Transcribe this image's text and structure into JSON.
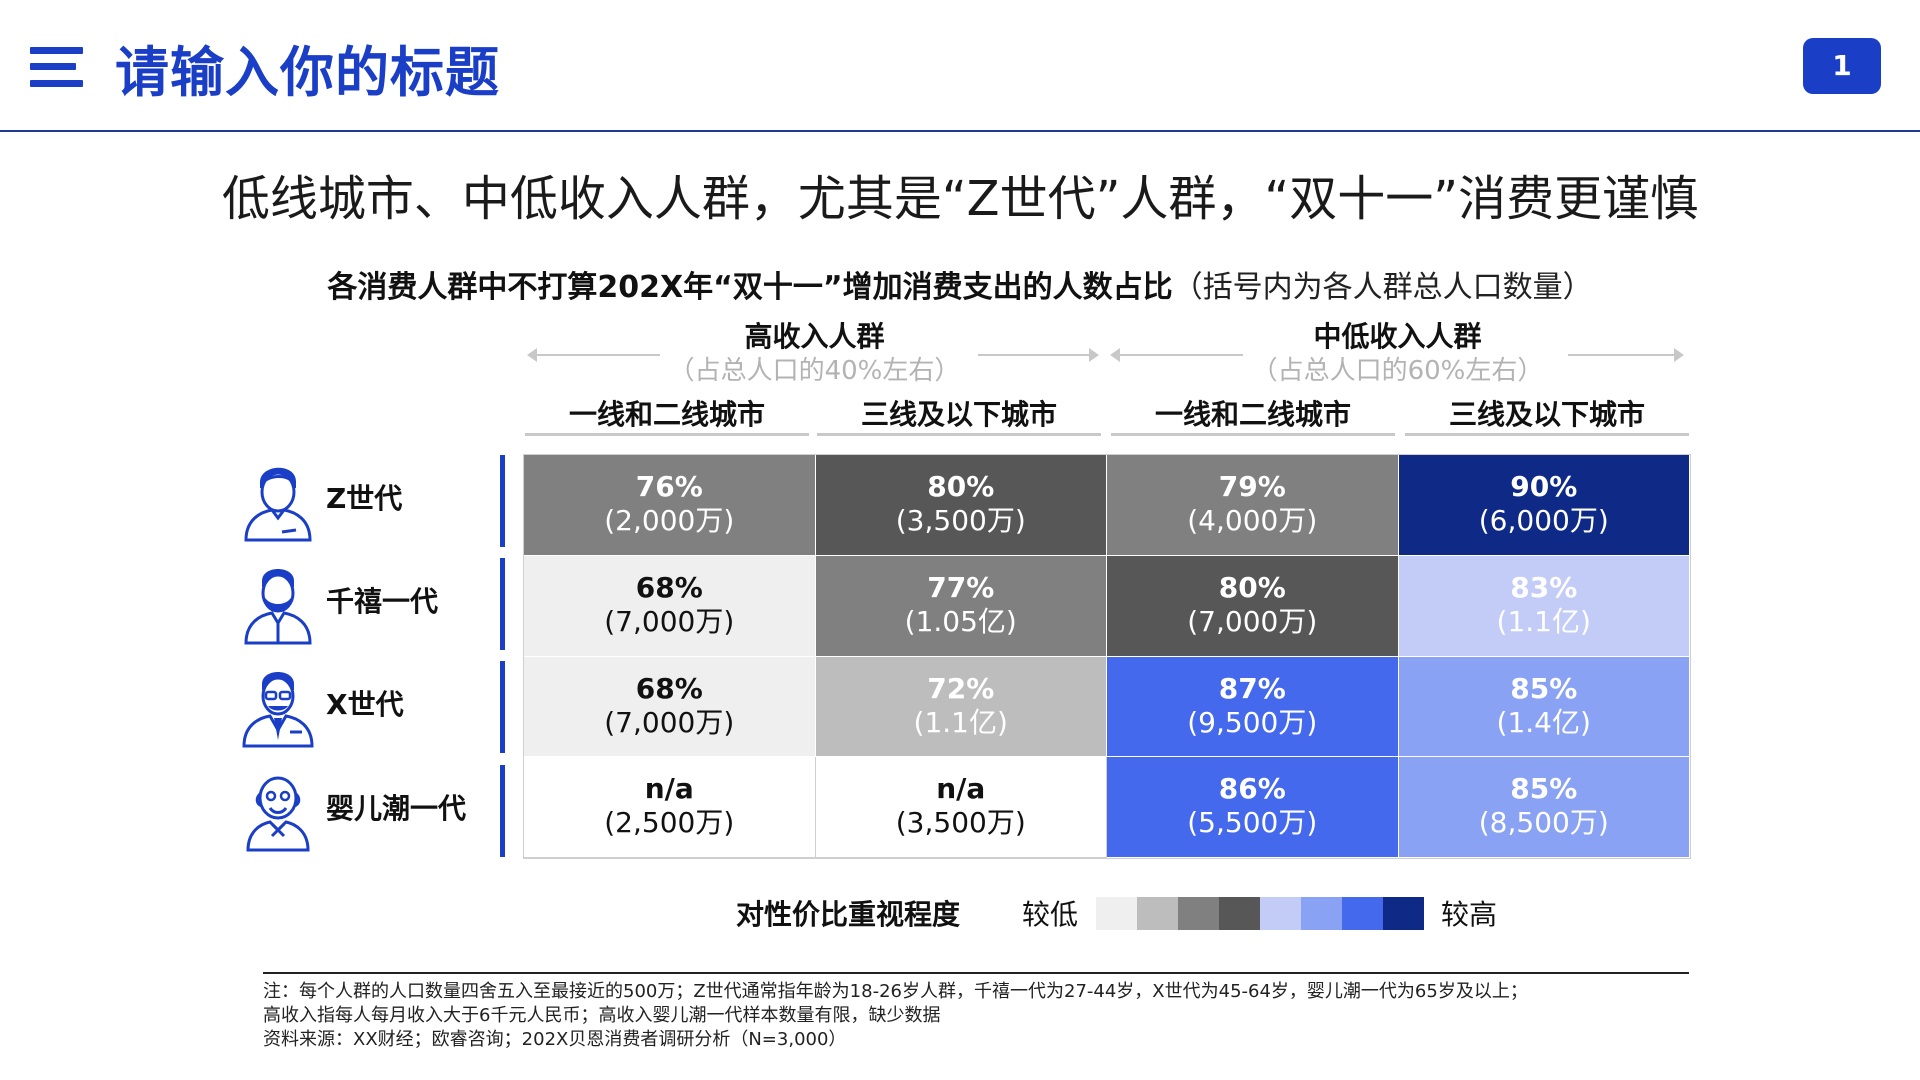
{
  "header": {
    "title": "请输入你的标题",
    "page_number": "1",
    "accent_color": "#1a3fc6"
  },
  "headline": "低线城市、中低收入人群，尤其是“Z世代”人群，“双十一”消费更谨慎",
  "chart_data": {
    "type": "heatmap",
    "title": "各消费人群中不打算202X年“双十一”增加消费支出的人数占比",
    "subtitle": "（括号内为各人群总人口数量）",
    "column_groups": [
      {
        "label": "高收入人群",
        "sub": "（占总人口的40%左右）"
      },
      {
        "label": "中低收入人群",
        "sub": "（占总人口的60%左右）"
      }
    ],
    "columns": [
      "一线和二线城市",
      "三线及以下城市",
      "一线和二线城市",
      "三线及以下城市"
    ],
    "rows": [
      {
        "name": "Z世代",
        "icon": "young-person-icon"
      },
      {
        "name": "千禧一代",
        "icon": "bearded-man-icon"
      },
      {
        "name": "X世代",
        "icon": "man-with-glasses-icon"
      },
      {
        "name": "婴儿潮一代",
        "icon": "elderly-man-icon"
      }
    ],
    "cells": [
      [
        {
          "value": "76%",
          "pop": "(2,000万)",
          "level": 3
        },
        {
          "value": "80%",
          "pop": "(3,500万)",
          "level": 4
        },
        {
          "value": "79%",
          "pop": "(4,000万)",
          "level": 3
        },
        {
          "value": "90%",
          "pop": "(6,000万)",
          "level": 8
        }
      ],
      [
        {
          "value": "68%",
          "pop": "(7,000万)",
          "level": 1
        },
        {
          "value": "77%",
          "pop": "(1.05亿)",
          "level": 3
        },
        {
          "value": "80%",
          "pop": "(7,000万)",
          "level": 4
        },
        {
          "value": "83%",
          "pop": "(1.1亿)",
          "level": 5
        }
      ],
      [
        {
          "value": "68%",
          "pop": "(7,000万)",
          "level": 1
        },
        {
          "value": "72%",
          "pop": "(1.1亿)",
          "level": 2
        },
        {
          "value": "87%",
          "pop": "(9,500万)",
          "level": 7
        },
        {
          "value": "85%",
          "pop": "(1.4亿)",
          "level": 6
        }
      ],
      [
        {
          "value": "n/a",
          "pop": "(2,500万)",
          "level": 0
        },
        {
          "value": "n/a",
          "pop": "(3,500万)",
          "level": 0
        },
        {
          "value": "86%",
          "pop": "(5,500万)",
          "level": 7
        },
        {
          "value": "85%",
          "pop": "(8,500万)",
          "level": 6
        }
      ]
    ],
    "legend": {
      "title": "对性价比重视程度",
      "low_label": "较低",
      "high_label": "较高",
      "scale_colors": [
        "#efefef",
        "#bdbdbd",
        "#808080",
        "#575757",
        "#c2ccf7",
        "#8aa2f3",
        "#4469ec",
        "#0e2a86"
      ]
    },
    "level_colors": [
      "#ffffff",
      "#efefef",
      "#bdbdbd",
      "#808080",
      "#575757",
      "#c2ccf7",
      "#8aa2f3",
      "#4469ec",
      "#0e2a86"
    ],
    "level_text_colors": [
      "#111111",
      "#111111",
      "#ffffff",
      "#ffffff",
      "#ffffff",
      "#ffffff",
      "#ffffff",
      "#ffffff",
      "#ffffff"
    ]
  },
  "footnotes": [
    "注：每个人群的人口数量四舍五入至最接近的500万；Z世代通常指年龄为18-26岁人群，千禧一代为27-44岁，X世代为45-64岁，婴儿潮一代为65岁及以上；",
    "高收入指每人每月收入大于6千元人民币；高收入婴儿潮一代样本数量有限，缺少数据",
    "资料来源：XX财经；欧睿咨询；202X贝恩消费者调研分析（N=3,000）"
  ]
}
